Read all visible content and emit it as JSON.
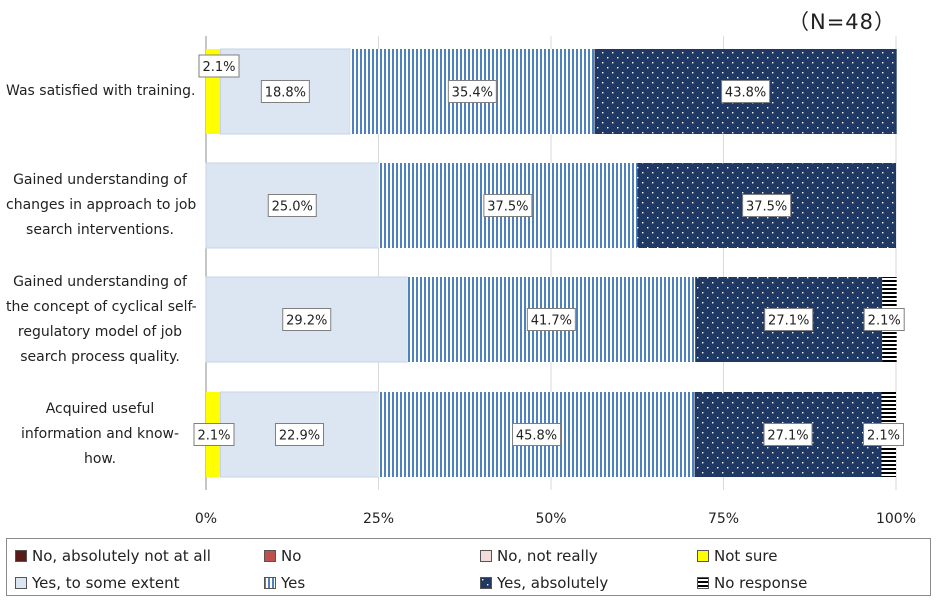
{
  "header": {
    "n_label": "（N=48）"
  },
  "chart_data": {
    "type": "bar",
    "orientation": "horizontal",
    "stacked": true,
    "percent_scale": true,
    "title": "",
    "xlabel": "",
    "ylabel": "",
    "xlim": [
      0,
      100
    ],
    "x_ticks": [
      "0%",
      "25%",
      "50%",
      "75%",
      "100%"
    ],
    "categories": [
      [
        "Was satisfied with training."
      ],
      [
        "Gained understanding of",
        "changes in approach to job",
        "search interventions."
      ],
      [
        "Gained understanding of",
        "the concept of cyclical self-",
        "regulatory model of job",
        "search process quality."
      ],
      [
        "Acquired useful",
        "information and know-",
        "how."
      ]
    ],
    "series": [
      {
        "name": "No, absolutely not at all",
        "color": "#5a1a1a",
        "pattern": "solid",
        "values": [
          0,
          0,
          0,
          0
        ]
      },
      {
        "name": "No",
        "color": "#c0504d",
        "pattern": "solid",
        "values": [
          0,
          0,
          0,
          0
        ]
      },
      {
        "name": "No, not really",
        "color": "#f2dcdb",
        "pattern": "solid",
        "values": [
          0,
          0,
          0,
          0
        ]
      },
      {
        "name": "Not sure",
        "color": "#ffff00",
        "pattern": "solid",
        "values": [
          2.1,
          0,
          0,
          2.1
        ]
      },
      {
        "name": "Yes, to some extent",
        "color": "#dce6f2",
        "pattern": "solid",
        "values": [
          18.8,
          25.0,
          29.2,
          22.9
        ]
      },
      {
        "name": "Yes",
        "color": "#4f81bd",
        "pattern": "vertical-stripes",
        "values": [
          35.4,
          37.5,
          41.7,
          45.8
        ]
      },
      {
        "name": "Yes, absolutely",
        "color": "#1f3864",
        "pattern": "dots",
        "values": [
          43.8,
          37.5,
          27.1,
          27.1
        ]
      },
      {
        "name": "No response",
        "color": "#000000",
        "pattern": "horizontal-stripes",
        "values": [
          0,
          0,
          2.1,
          2.1
        ]
      }
    ],
    "data_labels": [
      [
        "",
        "",
        "",
        "2.1%",
        "18.8%",
        "35.4%",
        "43.8%",
        ""
      ],
      [
        "",
        "",
        "",
        "",
        "25.0%",
        "37.5%",
        "37.5%",
        ""
      ],
      [
        "",
        "",
        "",
        "",
        "29.2%",
        "41.7%",
        "27.1%",
        "2.1%"
      ],
      [
        "",
        "",
        "",
        "2.1%",
        "22.9%",
        "45.8%",
        "27.1%",
        "2.1%"
      ]
    ],
    "legend_position": "bottom"
  }
}
